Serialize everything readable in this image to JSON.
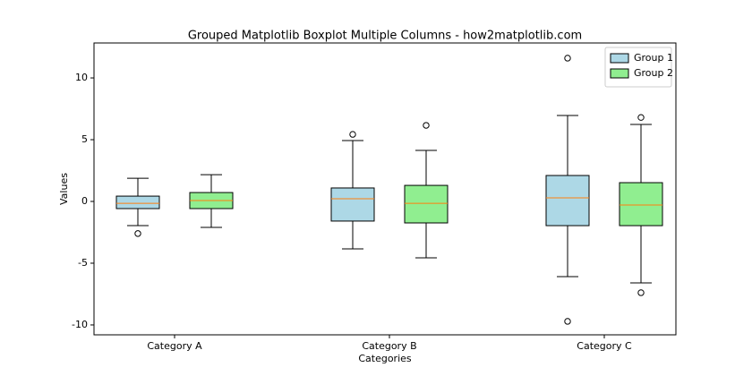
{
  "chart_data": {
    "type": "boxplot",
    "title": "Grouped Matplotlib Boxplot Multiple Columns - how2matplotlib.com",
    "x_label": "Categories",
    "y_label": "Values",
    "categories": [
      "Category A",
      "Category B",
      "Category C"
    ],
    "ylim": [
      -10.8,
      12.83
    ],
    "yticks": [
      -10,
      -5,
      0,
      5,
      10
    ],
    "legend": "upper right",
    "median_color": "#ff7f0e",
    "series": [
      {
        "name": "Group 1",
        "color": "#add8e6",
        "boxes": [
          {
            "low": -1.96,
            "q1": -0.58,
            "median": -0.15,
            "q3": 0.43,
            "high": 1.88,
            "outliers": [
              -2.6
            ]
          },
          {
            "low": -3.84,
            "q1": -1.59,
            "median": 0.22,
            "q3": 1.09,
            "high": 4.93,
            "outliers": [
              5.43
            ]
          },
          {
            "low": -6.09,
            "q1": -1.96,
            "median": 0.29,
            "q3": 2.1,
            "high": 6.96,
            "outliers": [
              11.6,
              -9.71
            ]
          }
        ]
      },
      {
        "name": "Group 2",
        "color": "#90ee90",
        "boxes": [
          {
            "low": -2.1,
            "q1": -0.58,
            "median": 0.07,
            "q3": 0.72,
            "high": 2.17,
            "outliers": []
          },
          {
            "low": -4.57,
            "q1": -1.74,
            "median": -0.15,
            "q3": 1.3,
            "high": 4.13,
            "outliers": [
              6.16
            ]
          },
          {
            "low": -6.6,
            "q1": -1.96,
            "median": -0.29,
            "q3": 1.52,
            "high": 6.23,
            "outliers": [
              6.8,
              -7.39
            ]
          }
        ]
      }
    ]
  }
}
